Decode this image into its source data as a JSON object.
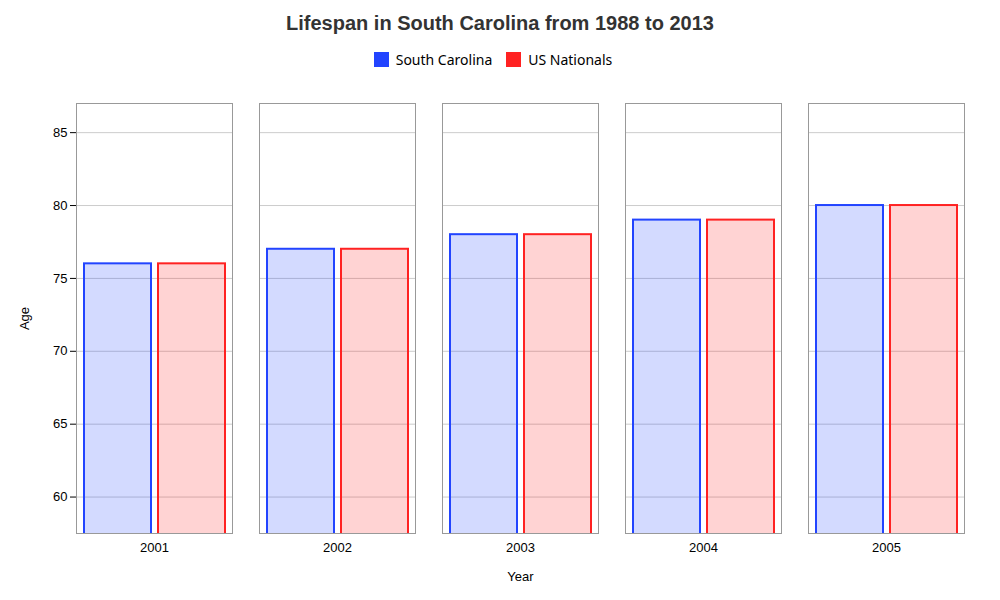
{
  "chart_data": {
    "type": "bar",
    "title": "Lifespan in South Carolina from 1988 to 2013",
    "x_label": "Year",
    "y_label": "Age",
    "categories": [
      "2001",
      "2002",
      "2003",
      "2004",
      "2005"
    ],
    "series": [
      {
        "name": "South Carolina",
        "color": "#2244ff",
        "values": [
          76,
          77,
          78,
          79,
          80
        ]
      },
      {
        "name": "US Nationals",
        "color": "#ff2222",
        "values": [
          76,
          77,
          78,
          79,
          80
        ]
      }
    ],
    "ylim": [
      57.5,
      87
    ],
    "yticks": [
      60,
      65,
      70,
      75,
      80,
      85
    ],
    "grid": true,
    "legend": "top"
  }
}
